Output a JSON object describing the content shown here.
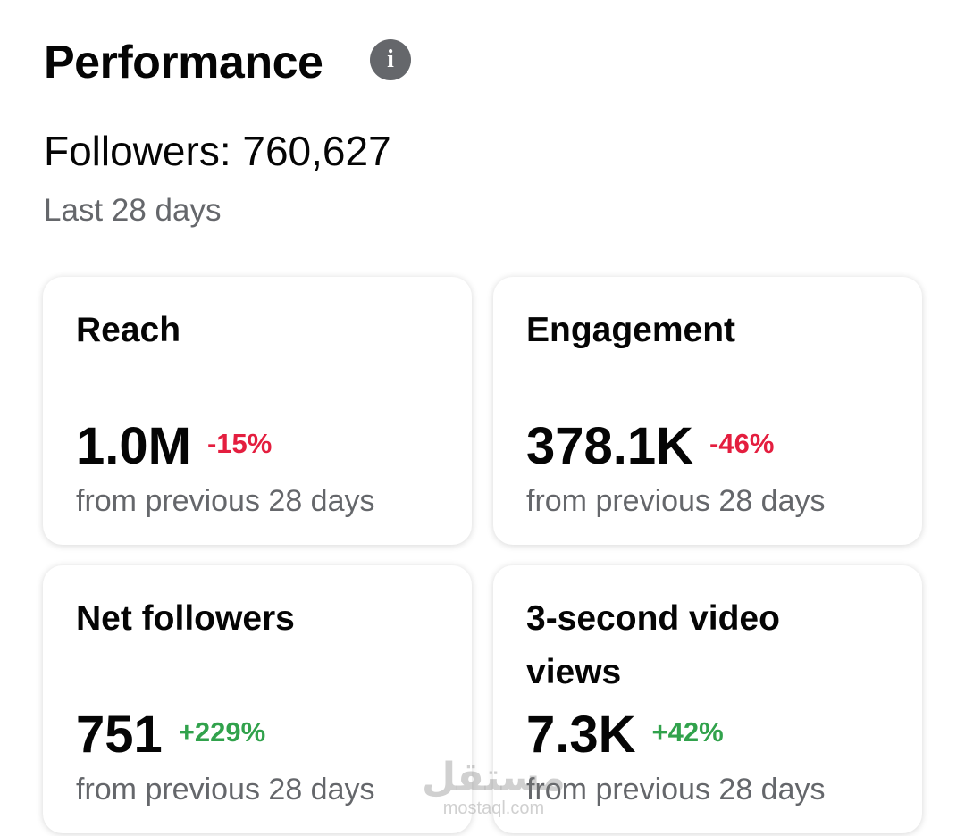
{
  "header": {
    "title": "Performance",
    "followers": "Followers: 760,627",
    "period": "Last 28 days"
  },
  "cards": [
    {
      "title": "Reach",
      "value": "1.0M",
      "change": "-15%",
      "change_color": "#e41e3f",
      "note": "from previous 28 days"
    },
    {
      "title": "Engagement",
      "value": "378.1K",
      "change": "-46%",
      "change_color": "#e41e3f",
      "note": "from previous 28 days"
    },
    {
      "title": "Net followers",
      "value": "751",
      "change": "+229%",
      "change_color": "#31a24c",
      "note": "from previous 28 days"
    },
    {
      "title": "3-second video views",
      "value": "7.3K",
      "change": "+42%",
      "change_color": "#31a24c",
      "note": "from previous 28 days"
    }
  ],
  "watermark": {
    "arabic": "مستقل",
    "latin": "mostaql.com"
  }
}
